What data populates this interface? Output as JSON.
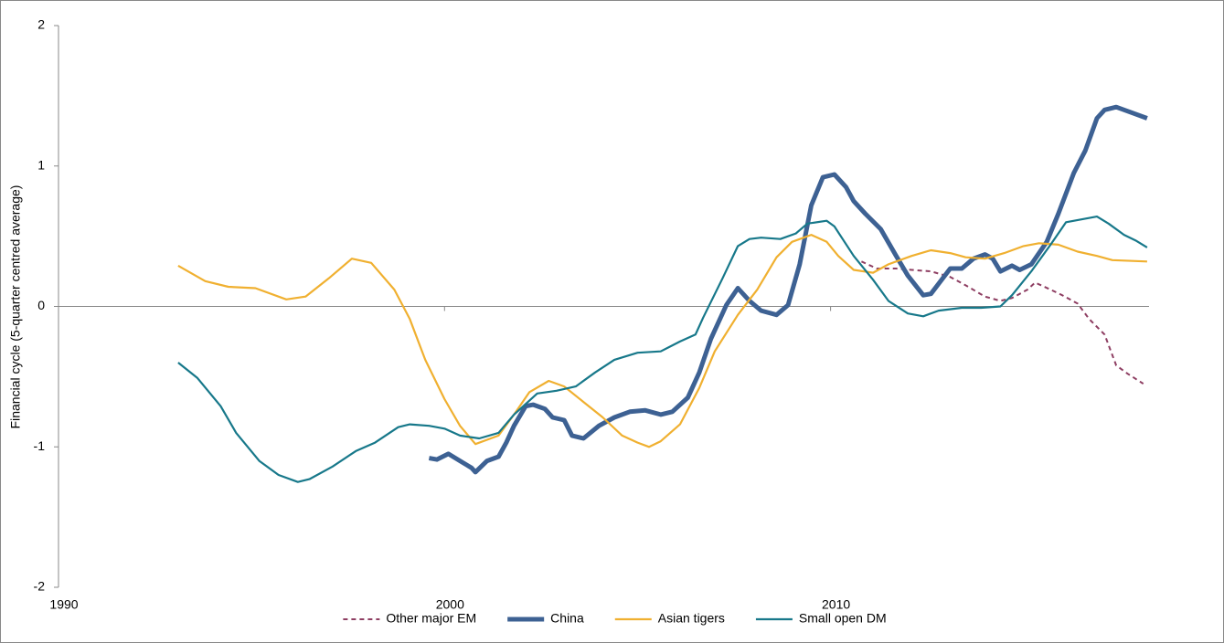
{
  "chart_data": {
    "type": "line",
    "ylabel": "Financial cycle (5-quarter centred average)",
    "xlim": [
      1990,
      2018.25
    ],
    "xticks": [
      1990,
      2000,
      2010
    ],
    "ylim": [
      -2,
      2
    ],
    "yticks": [
      -2,
      -1,
      0,
      1,
      2
    ],
    "legend": "bottom",
    "series": [
      {
        "name": "Other major EM",
        "color": "#8e3e62",
        "linewidth": 2,
        "dash": true,
        "x": [
          2010.8,
          2011.2,
          2011.7,
          2012.1,
          2012.6,
          2013.1,
          2013.5,
          2014.0,
          2014.4,
          2014.7,
          2015.1,
          2015.3,
          2015.7,
          2016.0,
          2016.4,
          2016.7,
          2017.1,
          2017.4,
          2017.7,
          2018.1
        ],
        "values": [
          0.32,
          0.27,
          0.27,
          0.26,
          0.25,
          0.21,
          0.15,
          0.07,
          0.04,
          0.06,
          0.12,
          0.17,
          0.12,
          0.08,
          0.02,
          -0.09,
          -0.2,
          -0.42,
          -0.48,
          -0.55
        ]
      },
      {
        "name": "China",
        "color": "#3d6193",
        "linewidth": 5,
        "dash": false,
        "x": [
          1999.6,
          1999.8,
          2000.1,
          2000.4,
          2000.7,
          2000.8,
          2001.1,
          2001.4,
          2001.6,
          2001.8,
          2002.1,
          2002.3,
          2002.6,
          2002.8,
          2003.1,
          2003.3,
          2003.6,
          2004.0,
          2004.4,
          2004.8,
          2005.2,
          2005.6,
          2005.9,
          2006.3,
          2006.6,
          2006.9,
          2007.3,
          2007.6,
          2007.9,
          2008.2,
          2008.6,
          2008.9,
          2009.2,
          2009.5,
          2009.8,
          2010.1,
          2010.4,
          2010.6,
          2010.9,
          2011.3,
          2011.7,
          2012.0,
          2012.4,
          2012.6,
          2013.1,
          2013.4,
          2013.7,
          2014.0,
          2014.2,
          2014.4,
          2014.7,
          2014.9,
          2015.2,
          2015.6,
          2015.9,
          2016.3,
          2016.6,
          2016.9,
          2017.1,
          2017.4,
          2017.7,
          2018.2
        ],
        "values": [
          -1.08,
          -1.09,
          -1.05,
          -1.1,
          -1.15,
          -1.18,
          -1.1,
          -1.07,
          -0.97,
          -0.85,
          -0.71,
          -0.7,
          -0.73,
          -0.79,
          -0.81,
          -0.92,
          -0.94,
          -0.85,
          -0.79,
          -0.75,
          -0.74,
          -0.77,
          -0.75,
          -0.65,
          -0.47,
          -0.23,
          0.01,
          0.13,
          0.04,
          -0.03,
          -0.06,
          0.01,
          0.3,
          0.72,
          0.92,
          0.94,
          0.85,
          0.75,
          0.66,
          0.55,
          0.36,
          0.22,
          0.08,
          0.09,
          0.27,
          0.27,
          0.34,
          0.37,
          0.34,
          0.25,
          0.29,
          0.26,
          0.3,
          0.46,
          0.66,
          0.95,
          1.11,
          1.34,
          1.4,
          1.42,
          1.39,
          1.34
        ]
      },
      {
        "name": "Asian tigers",
        "color": "#f0b030",
        "linewidth": 2.2,
        "dash": false,
        "x": [
          1993.1,
          1993.8,
          1994.4,
          1995.1,
          1995.9,
          1996.4,
          1997.0,
          1997.6,
          1998.1,
          1998.7,
          1999.1,
          1999.5,
          2000.0,
          2000.4,
          2000.8,
          2001.4,
          2001.8,
          2002.2,
          2002.7,
          2003.1,
          2003.6,
          2004.1,
          2004.6,
          2005.0,
          2005.3,
          2005.6,
          2006.1,
          2006.6,
          2007.0,
          2007.6,
          2008.1,
          2008.6,
          2009.0,
          2009.5,
          2009.9,
          2010.2,
          2010.6,
          2011.1,
          2011.5,
          2012.1,
          2012.6,
          2013.1,
          2013.5,
          2014.0,
          2014.5,
          2015.0,
          2015.4,
          2015.9,
          2016.4,
          2016.9,
          2017.3,
          2018.2
        ],
        "values": [
          0.29,
          0.18,
          0.14,
          0.13,
          0.05,
          0.07,
          0.2,
          0.34,
          0.31,
          0.12,
          -0.09,
          -0.38,
          -0.66,
          -0.85,
          -0.98,
          -0.92,
          -0.77,
          -0.61,
          -0.53,
          -0.57,
          -0.68,
          -0.79,
          -0.92,
          -0.97,
          -1.0,
          -0.96,
          -0.84,
          -0.58,
          -0.32,
          -0.06,
          0.12,
          0.35,
          0.46,
          0.51,
          0.46,
          0.36,
          0.26,
          0.24,
          0.3,
          0.36,
          0.4,
          0.38,
          0.35,
          0.34,
          0.38,
          0.43,
          0.45,
          0.44,
          0.39,
          0.36,
          0.33,
          0.32
        ]
      },
      {
        "name": "Small open DM",
        "color": "#17788a",
        "linewidth": 2.2,
        "dash": false,
        "x": [
          1993.1,
          1993.6,
          1994.2,
          1994.6,
          1995.2,
          1995.7,
          1996.2,
          1996.5,
          1997.1,
          1997.7,
          1998.2,
          1998.8,
          1999.1,
          1999.6,
          2000.0,
          2000.4,
          2000.9,
          2001.4,
          2001.8,
          2002.4,
          2002.9,
          2003.4,
          2003.9,
          2004.4,
          2005.0,
          2005.6,
          2006.1,
          2006.5,
          2006.7,
          2007.2,
          2007.6,
          2007.9,
          2008.2,
          2008.7,
          2009.1,
          2009.4,
          2009.9,
          2010.1,
          2010.6,
          2011.1,
          2011.5,
          2012.0,
          2012.4,
          2012.8,
          2013.4,
          2013.9,
          2014.4,
          2014.7,
          2015.2,
          2015.7,
          2016.1,
          2016.5,
          2016.9,
          2017.2,
          2017.6,
          2017.9,
          2018.2
        ],
        "values": [
          -0.4,
          -0.51,
          -0.71,
          -0.9,
          -1.1,
          -1.2,
          -1.25,
          -1.23,
          -1.14,
          -1.03,
          -0.97,
          -0.86,
          -0.84,
          -0.85,
          -0.87,
          -0.92,
          -0.94,
          -0.9,
          -0.77,
          -0.62,
          -0.6,
          -0.57,
          -0.47,
          -0.38,
          -0.33,
          -0.32,
          -0.25,
          -0.2,
          -0.08,
          0.2,
          0.43,
          0.48,
          0.49,
          0.48,
          0.52,
          0.59,
          0.61,
          0.57,
          0.36,
          0.19,
          0.04,
          -0.05,
          -0.07,
          -0.03,
          -0.01,
          -0.01,
          0.0,
          0.08,
          0.25,
          0.44,
          0.6,
          0.62,
          0.64,
          0.59,
          0.51,
          0.47,
          0.42
        ]
      }
    ]
  }
}
